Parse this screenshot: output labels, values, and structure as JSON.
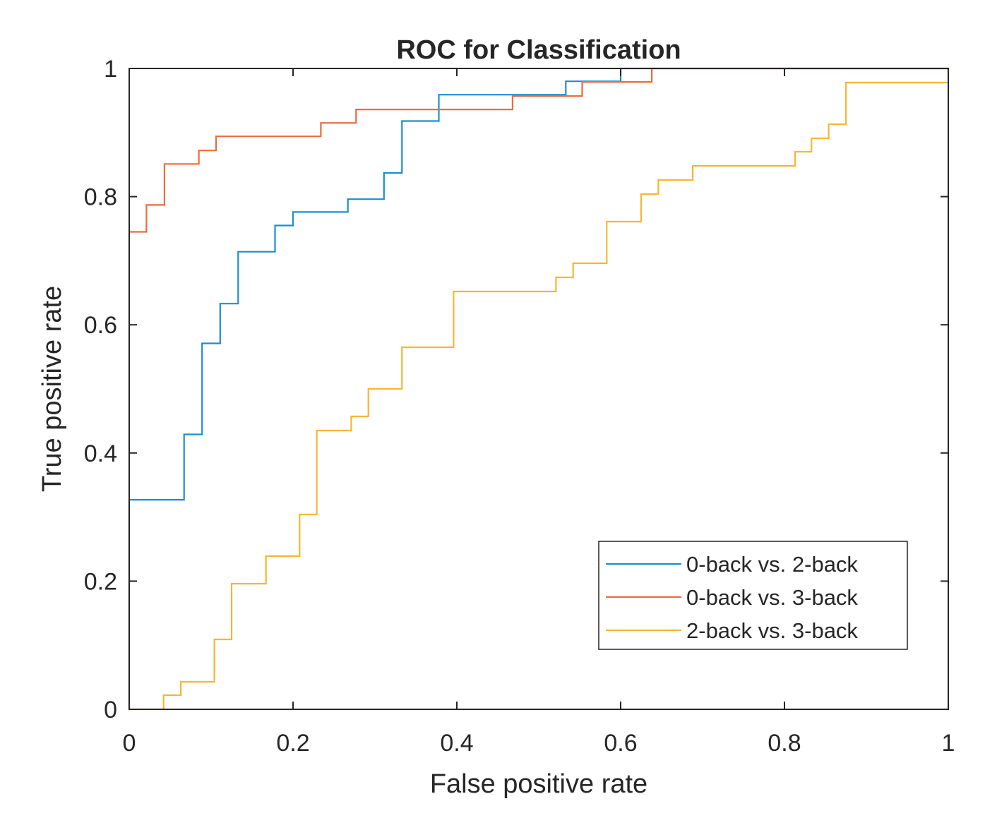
{
  "chart_data": {
    "type": "line",
    "title": "ROC for Classification",
    "xlabel": "False positive rate",
    "ylabel": "True positive rate",
    "xlim": [
      0,
      1
    ],
    "ylim": [
      0,
      1
    ],
    "xticks": [
      "0",
      "0.2",
      "0.4",
      "0.6",
      "0.8",
      "1"
    ],
    "yticks": [
      "0",
      "0.2",
      "0.4",
      "0.6",
      "0.8",
      "1"
    ],
    "xtick_values": [
      0,
      0.2,
      0.4,
      0.6,
      0.8,
      1
    ],
    "ytick_values": [
      0,
      0.2,
      0.4,
      0.6,
      0.8,
      1
    ],
    "grid": false,
    "legend_position": "bottom-right",
    "series": [
      {
        "name": "0-back vs. 2-back",
        "color": "#1a8fd0",
        "x": [
          0,
          0,
          0.067,
          0.067,
          0.089,
          0.089,
          0.111,
          0.111,
          0.133,
          0.133,
          0.178,
          0.178,
          0.2,
          0.2,
          0.267,
          0.267,
          0.311,
          0.311,
          0.333,
          0.333,
          0.378,
          0.378,
          0.533,
          0.533,
          0.6,
          0.6,
          1
        ],
        "y": [
          0,
          0.327,
          0.327,
          0.429,
          0.429,
          0.571,
          0.571,
          0.633,
          0.633,
          0.714,
          0.714,
          0.755,
          0.755,
          0.776,
          0.776,
          0.796,
          0.796,
          0.837,
          0.837,
          0.918,
          0.918,
          0.959,
          0.959,
          0.98,
          0.98,
          1,
          1
        ]
      },
      {
        "name": "0-back vs. 3-back",
        "color": "#ef6a3d",
        "x": [
          0,
          0,
          0.021,
          0.021,
          0.043,
          0.043,
          0.085,
          0.085,
          0.106,
          0.106,
          0.234,
          0.234,
          0.277,
          0.277,
          0.468,
          0.468,
          0.553,
          0.553,
          0.638,
          0.638,
          1
        ],
        "y": [
          0,
          0.745,
          0.745,
          0.787,
          0.787,
          0.851,
          0.851,
          0.872,
          0.872,
          0.894,
          0.894,
          0.915,
          0.915,
          0.936,
          0.936,
          0.957,
          0.957,
          0.979,
          0.979,
          1,
          1
        ]
      },
      {
        "name": "2-back vs. 3-back",
        "color": "#f8b532",
        "x": [
          0,
          0.042,
          0.042,
          0.063,
          0.063,
          0.104,
          0.104,
          0.125,
          0.125,
          0.167,
          0.167,
          0.208,
          0.208,
          0.229,
          0.229,
          0.271,
          0.271,
          0.292,
          0.292,
          0.333,
          0.333,
          0.396,
          0.396,
          0.521,
          0.521,
          0.542,
          0.542,
          0.583,
          0.583,
          0.625,
          0.625,
          0.646,
          0.646,
          0.688,
          0.688,
          0.813,
          0.813,
          0.833,
          0.833,
          0.854,
          0.854,
          0.875,
          0.875,
          1,
          1
        ],
        "y": [
          0,
          0,
          0.022,
          0.022,
          0.043,
          0.043,
          0.109,
          0.109,
          0.196,
          0.196,
          0.239,
          0.239,
          0.304,
          0.304,
          0.435,
          0.435,
          0.457,
          0.457,
          0.5,
          0.5,
          0.565,
          0.565,
          0.652,
          0.652,
          0.674,
          0.674,
          0.696,
          0.696,
          0.761,
          0.761,
          0.804,
          0.804,
          0.826,
          0.826,
          0.848,
          0.848,
          0.87,
          0.87,
          0.891,
          0.891,
          0.913,
          0.913,
          0.978,
          0.978,
          1
        ]
      }
    ]
  }
}
